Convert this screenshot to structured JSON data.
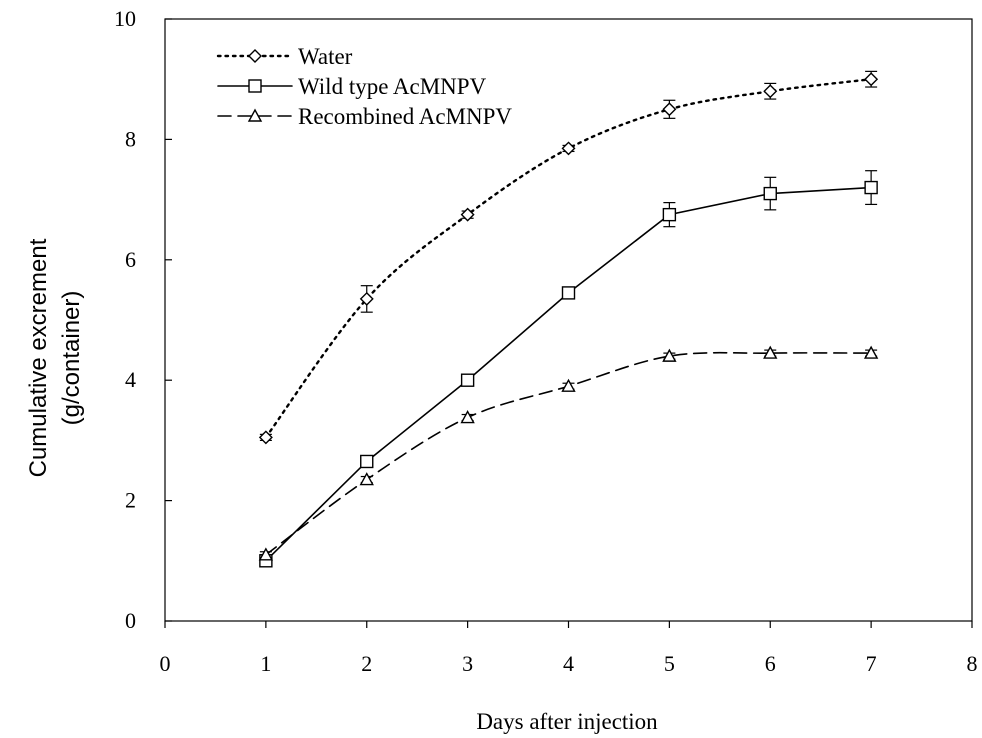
{
  "chart_data": {
    "type": "line",
    "xlabel": "Days after injection",
    "ylabel_lines": [
      "Cumulative excrement",
      "(g/container)"
    ],
    "xlim": [
      0,
      8
    ],
    "ylim": [
      0,
      10
    ],
    "x_ticks": [
      0,
      1,
      2,
      3,
      4,
      5,
      6,
      7,
      8
    ],
    "y_ticks": [
      0,
      2,
      4,
      6,
      8,
      10
    ],
    "grid": false,
    "legend_position": "top-left",
    "x": [
      1,
      2,
      3,
      4,
      5,
      6,
      7
    ],
    "series": [
      {
        "name": "Water",
        "marker": "diamond",
        "line_style": "dotted",
        "values": [
          3.05,
          5.35,
          6.75,
          7.85,
          8.5,
          8.8,
          9.0
        ],
        "errors": [
          0.05,
          0.22,
          0.06,
          0.05,
          0.15,
          0.13,
          0.13
        ]
      },
      {
        "name": "Wild type AcMNPV",
        "marker": "square",
        "line_style": "solid",
        "values": [
          1.0,
          2.65,
          4.0,
          5.45,
          6.75,
          7.1,
          7.2
        ],
        "errors": [
          0.1,
          0.05,
          0.05,
          0.05,
          0.2,
          0.27,
          0.28
        ]
      },
      {
        "name": "Recombined AcMNPV",
        "marker": "triangle",
        "line_style": "dashed",
        "values": [
          1.1,
          2.35,
          3.38,
          3.9,
          4.4,
          4.45,
          4.45
        ],
        "errors": [
          0.05,
          0.05,
          0.05,
          0.05,
          0.05,
          0.05,
          0.05
        ]
      }
    ]
  }
}
